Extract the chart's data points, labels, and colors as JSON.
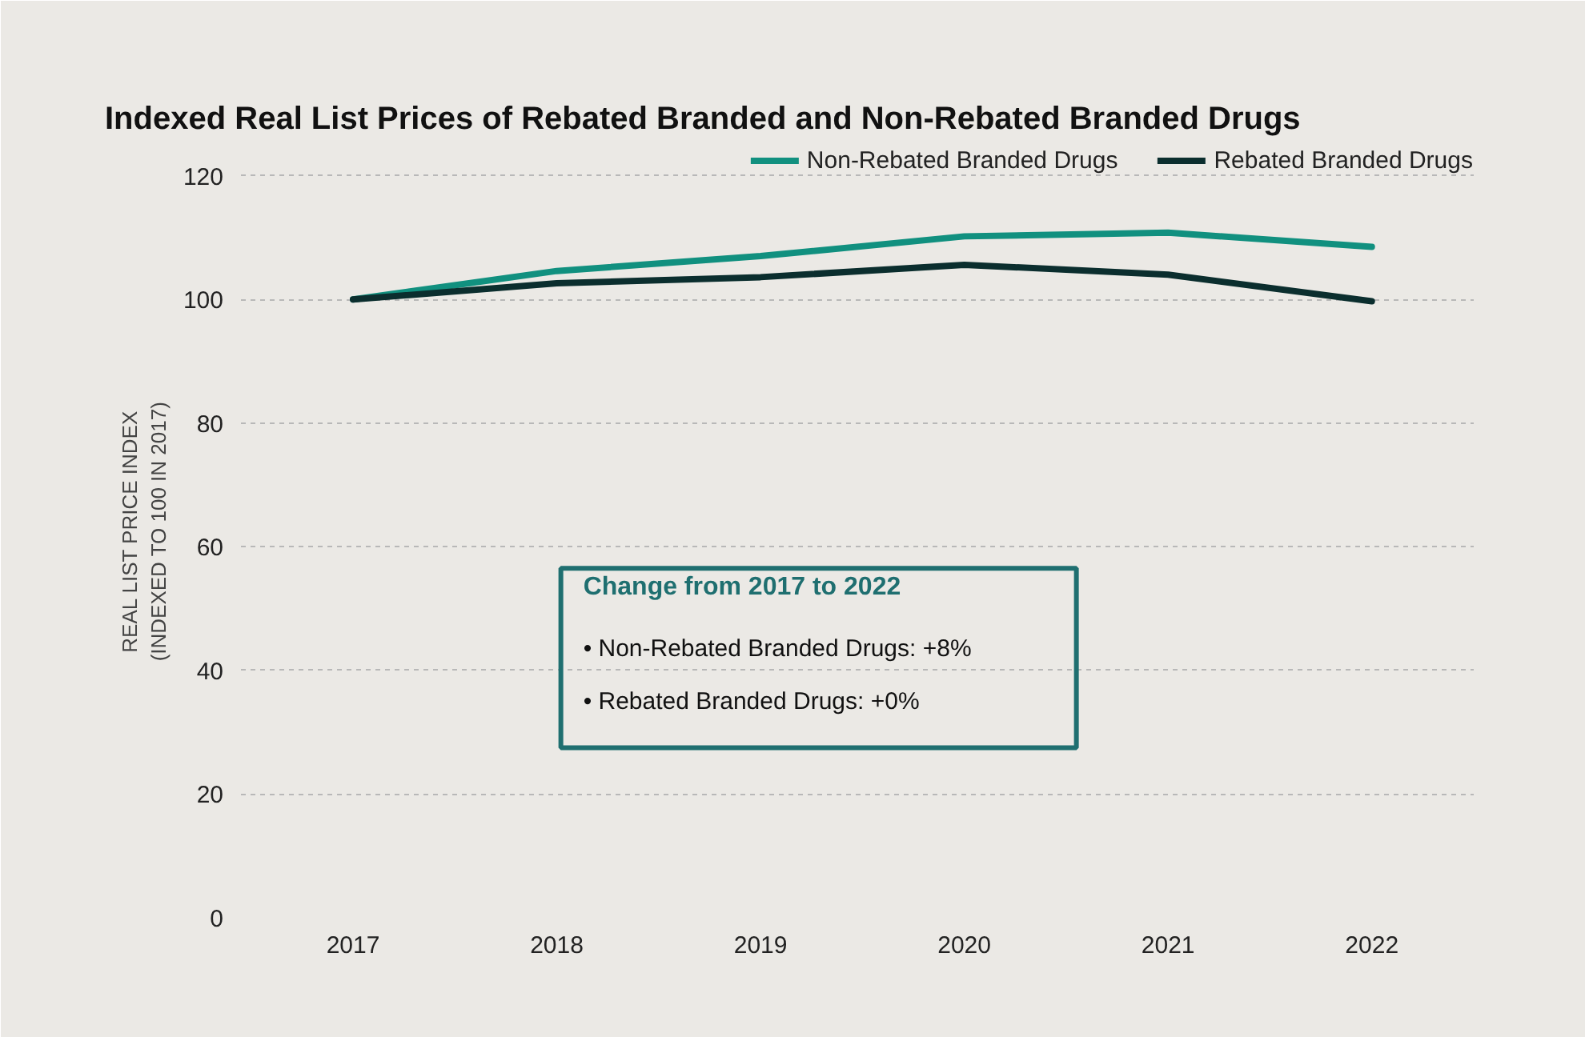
{
  "chart_data": {
    "type": "line",
    "title": "Indexed Real List Prices of Rebated Branded and Non-Rebated Branded Drugs",
    "ylabel": "REAL LIST PRICE INDEX\n(INDEXED TO 100 IN 2017)",
    "categories": [
      "2017",
      "2018",
      "2019",
      "2020",
      "2021",
      "2022"
    ],
    "series": [
      {
        "name": "Non-Rebated Branded Drugs",
        "color": "#11907f",
        "values": [
          100,
          104.6,
          107,
          110.2,
          110.8,
          108.5
        ]
      },
      {
        "name": "Rebated Branded Drugs",
        "color": "#0b2e2e",
        "values": [
          100,
          102.6,
          103.6,
          105.6,
          104,
          99.7
        ]
      }
    ],
    "ylim": [
      0,
      125
    ],
    "yticks": [
      0,
      20,
      40,
      60,
      80,
      100,
      120
    ],
    "grid": "y",
    "legend": "top right",
    "marker": "none",
    "line_style": "solid",
    "annotations": [
      "Change from 2017 to 2022",
      "• Non-Rebated Branded Drugs: +8%",
      "• Rebated Branded Drugs: +0%"
    ]
  }
}
